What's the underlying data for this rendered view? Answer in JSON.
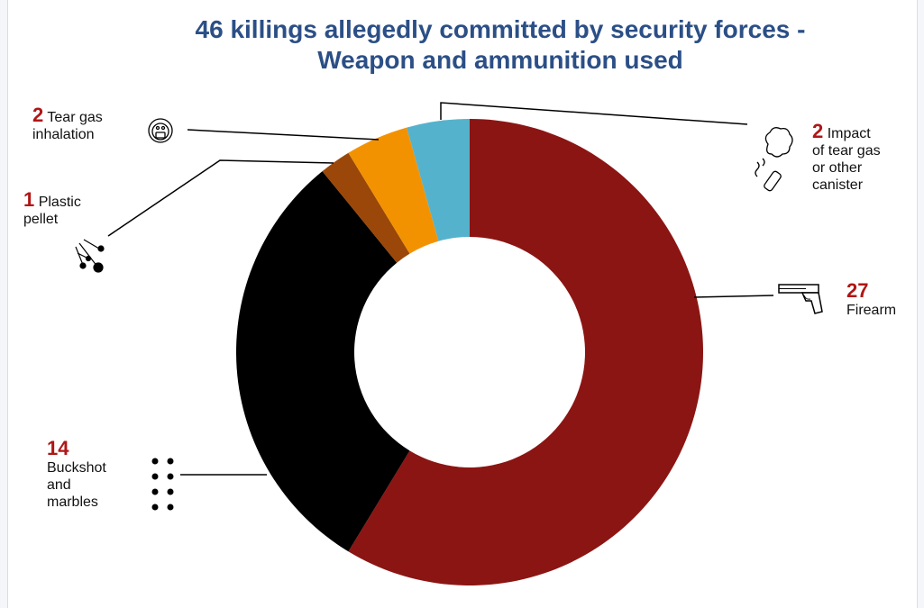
{
  "title_line1": "46 killings allegedly committed by security forces -",
  "title_line2": "Weapon and ammunition used",
  "chart_data": {
    "type": "pie",
    "title": "46 killings allegedly committed by security forces - Weapon and ammunition used",
    "hole": true,
    "start_angle_deg": 0,
    "direction": "clockwise",
    "total": 46,
    "slices": [
      {
        "value": 27,
        "label": "Firearm",
        "color": "#8b1513",
        "icon": "pistol-icon"
      },
      {
        "value": 14,
        "label": "Buckshot and marbles",
        "color": "#000000",
        "icon": "buckshot-dots-icon"
      },
      {
        "value": 1,
        "label": "Plastic pellet",
        "color": "#9a4709",
        "icon": "pellet-spray-icon"
      },
      {
        "value": 2,
        "label": "Tear gas inhalation",
        "color": "#f39200",
        "icon": "gas-mask-icon"
      },
      {
        "value": 2,
        "label": "Impact of tear gas or other canister",
        "color": "#55b2cc",
        "icon": "canister-icon"
      }
    ]
  },
  "labels": {
    "firearm": {
      "num": "27",
      "line1": "Firearm"
    },
    "buckshot": {
      "num": "14",
      "line1": "Buckshot",
      "line2": "and",
      "line3": "marbles"
    },
    "pellet": {
      "num": "1",
      "line1": " Plastic",
      "line2": "pellet"
    },
    "teargas": {
      "num": "2",
      "line1": " Tear gas",
      "line2": "inhalation"
    },
    "canister": {
      "num": "2",
      "line1": " Impact",
      "line2": "of tear gas",
      "line3": "or other",
      "line4": "canister"
    }
  }
}
